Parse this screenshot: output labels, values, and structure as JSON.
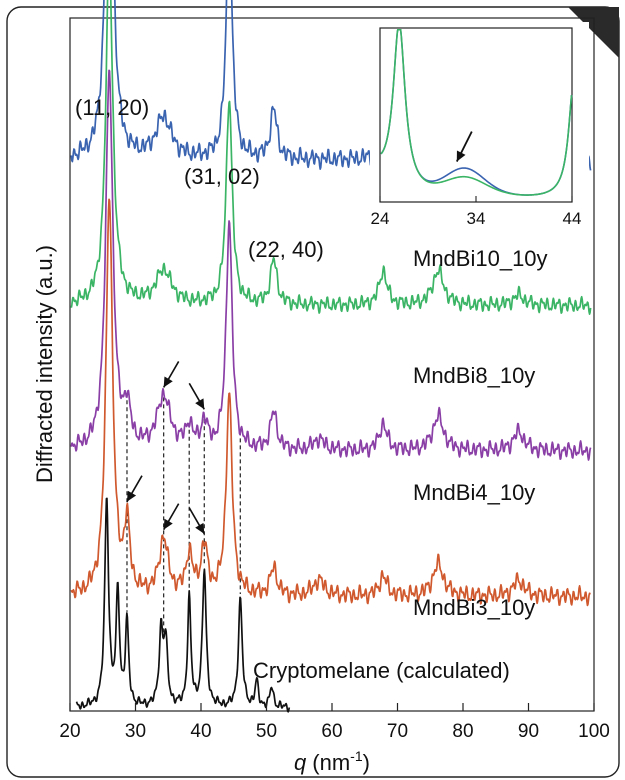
{
  "chart_data": {
    "type": "line",
    "xlabel": "q",
    "xlabel_unit": "(nm",
    "xlabel_unit_exp": "-1",
    "xlabel_unit_close": ")",
    "ylabel": "Diffracted intensity (a.u.)",
    "xlim": [
      20,
      100
    ],
    "x_ticks": [
      "20",
      "30",
      "40",
      "50",
      "60",
      "70",
      "80",
      "90",
      "100"
    ],
    "peak_labels": [
      "(11, 20)",
      "(31, 02)",
      "(22, 40)"
    ],
    "dashed_guides_q": [
      28.7,
      34.3,
      38.2,
      40.5,
      46.0
    ],
    "series": [
      {
        "name": "MndBi10_10y",
        "color": "#3a63b0",
        "offset": 0.795,
        "scale": 0.6,
        "peaks": [
          [
            26.0,
            1.0,
            0.65
          ],
          [
            34.3,
            0.1,
            1.4
          ],
          [
            44.3,
            0.58,
            0.55
          ],
          [
            51.1,
            0.12,
            0.6
          ],
          [
            67.8,
            0.09,
            0.7
          ],
          [
            76.2,
            0.09,
            1.0
          ],
          [
            91.5,
            0.03,
            1.2
          ]
        ]
      },
      {
        "name": "MndBi8_10y",
        "color": "#3bb565",
        "offset": 0.585,
        "scale": 0.5,
        "peaks": [
          [
            26.0,
            1.0,
            0.65
          ],
          [
            34.3,
            0.1,
            1.4
          ],
          [
            44.3,
            0.6,
            0.55
          ],
          [
            51.1,
            0.13,
            0.6
          ],
          [
            67.8,
            0.1,
            0.7
          ],
          [
            76.2,
            0.1,
            1.0
          ],
          [
            88.5,
            0.03,
            1.0
          ]
        ]
      },
      {
        "name": "MndBi4_10y",
        "color": "#8a3fa6",
        "offset": 0.375,
        "scale": 0.55,
        "peaks": [
          [
            26.0,
            1.0,
            0.65
          ],
          [
            28.7,
            0.1,
            0.6
          ],
          [
            34.3,
            0.14,
            1.2
          ],
          [
            38.2,
            0.06,
            0.6
          ],
          [
            40.5,
            0.07,
            0.6
          ],
          [
            44.3,
            0.6,
            0.55
          ],
          [
            51.1,
            0.1,
            0.6
          ],
          [
            58.0,
            0.03,
            1.0
          ],
          [
            67.8,
            0.07,
            0.7
          ],
          [
            76.2,
            0.09,
            1.0
          ],
          [
            88.5,
            0.05,
            1.0
          ]
        ]
      },
      {
        "name": "MndBi3_10y",
        "color": "#d0592e",
        "offset": 0.165,
        "scale": 0.58,
        "peaks": [
          [
            26.0,
            1.0,
            0.6
          ],
          [
            28.7,
            0.17,
            0.5
          ],
          [
            34.3,
            0.14,
            0.8
          ],
          [
            38.2,
            0.1,
            0.6
          ],
          [
            40.5,
            0.12,
            0.6
          ],
          [
            44.3,
            0.5,
            0.55
          ],
          [
            51.1,
            0.07,
            0.6
          ],
          [
            58.0,
            0.04,
            1.0
          ],
          [
            67.8,
            0.05,
            0.7
          ],
          [
            76.2,
            0.08,
            1.0
          ],
          [
            88.5,
            0.04,
            1.0
          ]
        ]
      },
      {
        "name": "Cryptomelane (calculated)",
        "color": "#111111",
        "offset": 0.005,
        "scale": 0.3,
        "xmax": 53.5,
        "peaks": [
          [
            25.6,
            1.0,
            0.35
          ],
          [
            27.3,
            0.55,
            0.3
          ],
          [
            28.7,
            0.4,
            0.3
          ],
          [
            33.9,
            0.35,
            0.35
          ],
          [
            34.6,
            0.3,
            0.35
          ],
          [
            38.2,
            0.52,
            0.3
          ],
          [
            40.5,
            0.65,
            0.35
          ],
          [
            46.0,
            0.52,
            0.35
          ],
          [
            48.5,
            0.12,
            0.3
          ],
          [
            50.8,
            0.1,
            0.3
          ]
        ]
      }
    ],
    "arrows": [
      {
        "series": 2,
        "q": 34.3,
        "dir": "down-left"
      },
      {
        "series": 2,
        "q": 40.5,
        "dir": "down-right"
      },
      {
        "series": 3,
        "q": 28.7,
        "dir": "down-left"
      },
      {
        "series": 3,
        "q": 34.3,
        "dir": "down-left"
      },
      {
        "series": 3,
        "q": 40.5,
        "dir": "down-right"
      }
    ],
    "inset": {
      "xlim": [
        24,
        44
      ],
      "x_ticks": [
        "24",
        "34",
        "44"
      ],
      "series": [
        {
          "name": "MndBi10_10y",
          "color": "#3a63b0",
          "shoulder": 0.1
        },
        {
          "name": "MndBi8_10y",
          "color": "#3bb565",
          "shoulder": 0.05
        }
      ],
      "arrow_q": 32.0
    }
  }
}
